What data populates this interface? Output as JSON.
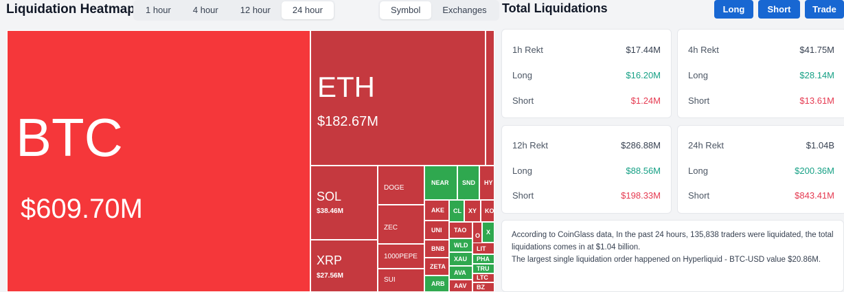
{
  "header": {
    "title": "Liquidation Heatmap",
    "timeframes": [
      "1 hour",
      "4 hour",
      "12 hour",
      "24 hour"
    ],
    "active_timeframe": "24 hour",
    "views": [
      "Symbol",
      "Exchanges"
    ],
    "active_view": "Symbol"
  },
  "heatmap": {
    "colors": {
      "red_big": "#f5373a",
      "red": "#c5393f",
      "green": "#2fa84f"
    },
    "tiles": {
      "btc": {
        "symbol": "BTC",
        "value": "$609.70M"
      },
      "eth": {
        "symbol": "ETH",
        "value": "$182.67M"
      },
      "sol": {
        "symbol": "SOL",
        "value": "$38.46M"
      },
      "xrp": {
        "symbol": "XRP",
        "value": "$27.56M"
      },
      "doge": {
        "symbol": "DOGE"
      },
      "zec": {
        "symbol": "ZEC"
      },
      "pepe": {
        "symbol": "1000PEPE"
      },
      "sui": {
        "symbol": "SUI"
      },
      "near": {
        "symbol": "NEAR"
      },
      "snd": {
        "symbol": "SND"
      },
      "hy": {
        "symbol": "HY"
      },
      "ake": {
        "symbol": "AKE"
      },
      "cl": {
        "symbol": "CL"
      },
      "xy": {
        "symbol": "XY"
      },
      "ko": {
        "symbol": "KO"
      },
      "uni": {
        "symbol": "UNI"
      },
      "tao": {
        "symbol": "TAO"
      },
      "o": {
        "symbol": "O"
      },
      "x": {
        "symbol": "X"
      },
      "bnb": {
        "symbol": "BNB"
      },
      "wld": {
        "symbol": "WLD"
      },
      "lit": {
        "symbol": "LIT"
      },
      "xau": {
        "symbol": "XAU"
      },
      "pha": {
        "symbol": "PHA"
      },
      "zeta": {
        "symbol": "ZETA"
      },
      "ava": {
        "symbol": "AVA"
      },
      "tru": {
        "symbol": "TRU"
      },
      "ltc": {
        "symbol": "LTC"
      },
      "arb": {
        "symbol": "ARB"
      },
      "aav": {
        "symbol": "AAV"
      },
      "bz": {
        "symbol": "BZ"
      }
    }
  },
  "total": {
    "title": "Total Liquidations",
    "buttons": [
      "Long",
      "Short",
      "Trade"
    ],
    "cards": [
      {
        "label": "1h Rekt",
        "total": "$17.44M",
        "long_label": "Long",
        "long": "$16.20M",
        "short_label": "Short",
        "short": "$1.24M"
      },
      {
        "label": "4h Rekt",
        "total": "$41.75M",
        "long_label": "Long",
        "long": "$28.14M",
        "short_label": "Short",
        "short": "$13.61M"
      },
      {
        "label": "12h Rekt",
        "total": "$286.88M",
        "long_label": "Long",
        "long": "$88.56M",
        "short_label": "Short",
        "short": "$198.33M"
      },
      {
        "label": "24h Rekt",
        "total": "$1.04B",
        "long_label": "Long",
        "long": "$200.36M",
        "short_label": "Short",
        "short": "$843.41M"
      }
    ],
    "summary_line1": "According to CoinGlass data, In the past 24 hours, 135,838 traders were liquidated, the total liquidations comes in at $1.04 billion.",
    "summary_line2": "The largest single liquidation order happened on Hyperliquid - BTC-USD value $20.86M."
  }
}
